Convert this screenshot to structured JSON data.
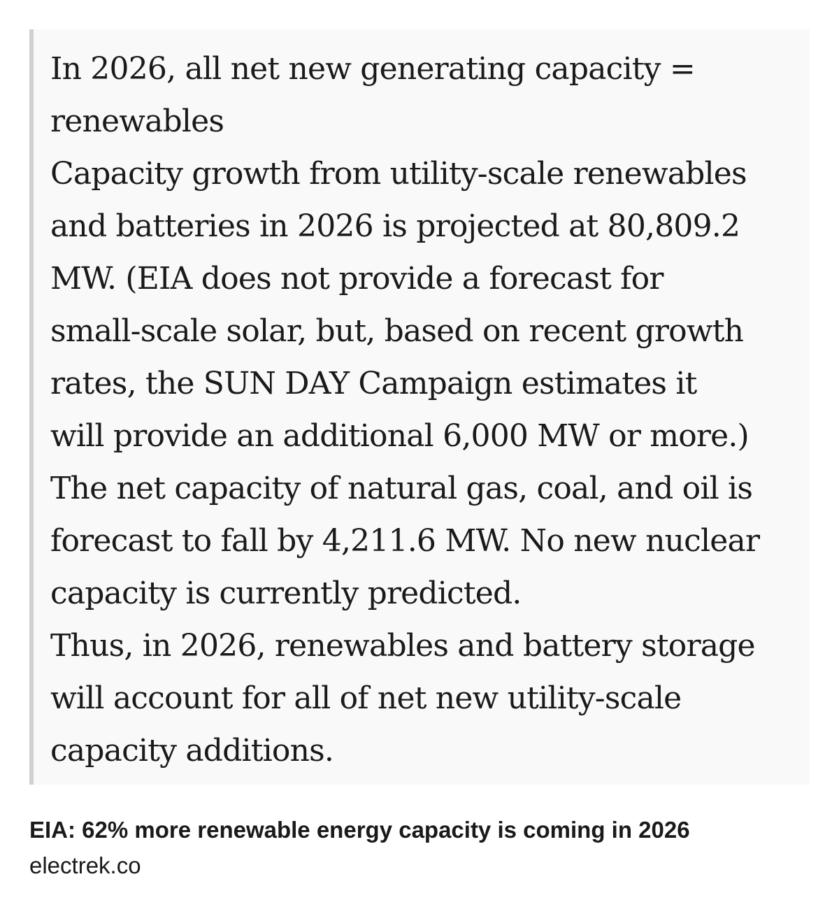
{
  "quote": {
    "lines": [
      "In 2026, all net new generating capacity =",
      "renewables",
      "Capacity growth from utility-scale renewables",
      "and batteries in 2026 is projected at 80,809.2",
      "MW. (EIA does not provide a forecast for",
      "small-scale solar, but, based on recent growth",
      "rates, the SUN DAY Campaign estimates it",
      "will provide an additional 6,000 MW or more.)",
      "The net capacity of natural gas, coal, and oil is",
      "forecast to fall by 4,211.6 MW. No new nuclear",
      "capacity is currently predicted.",
      "Thus, in 2026, renewables and battery storage",
      "will account for all of net new utility-scale",
      "capacity additions."
    ]
  },
  "link_preview": {
    "title": "EIA: 62% more renewable energy capacity is coming in 2026",
    "domain": "electrek.co"
  }
}
